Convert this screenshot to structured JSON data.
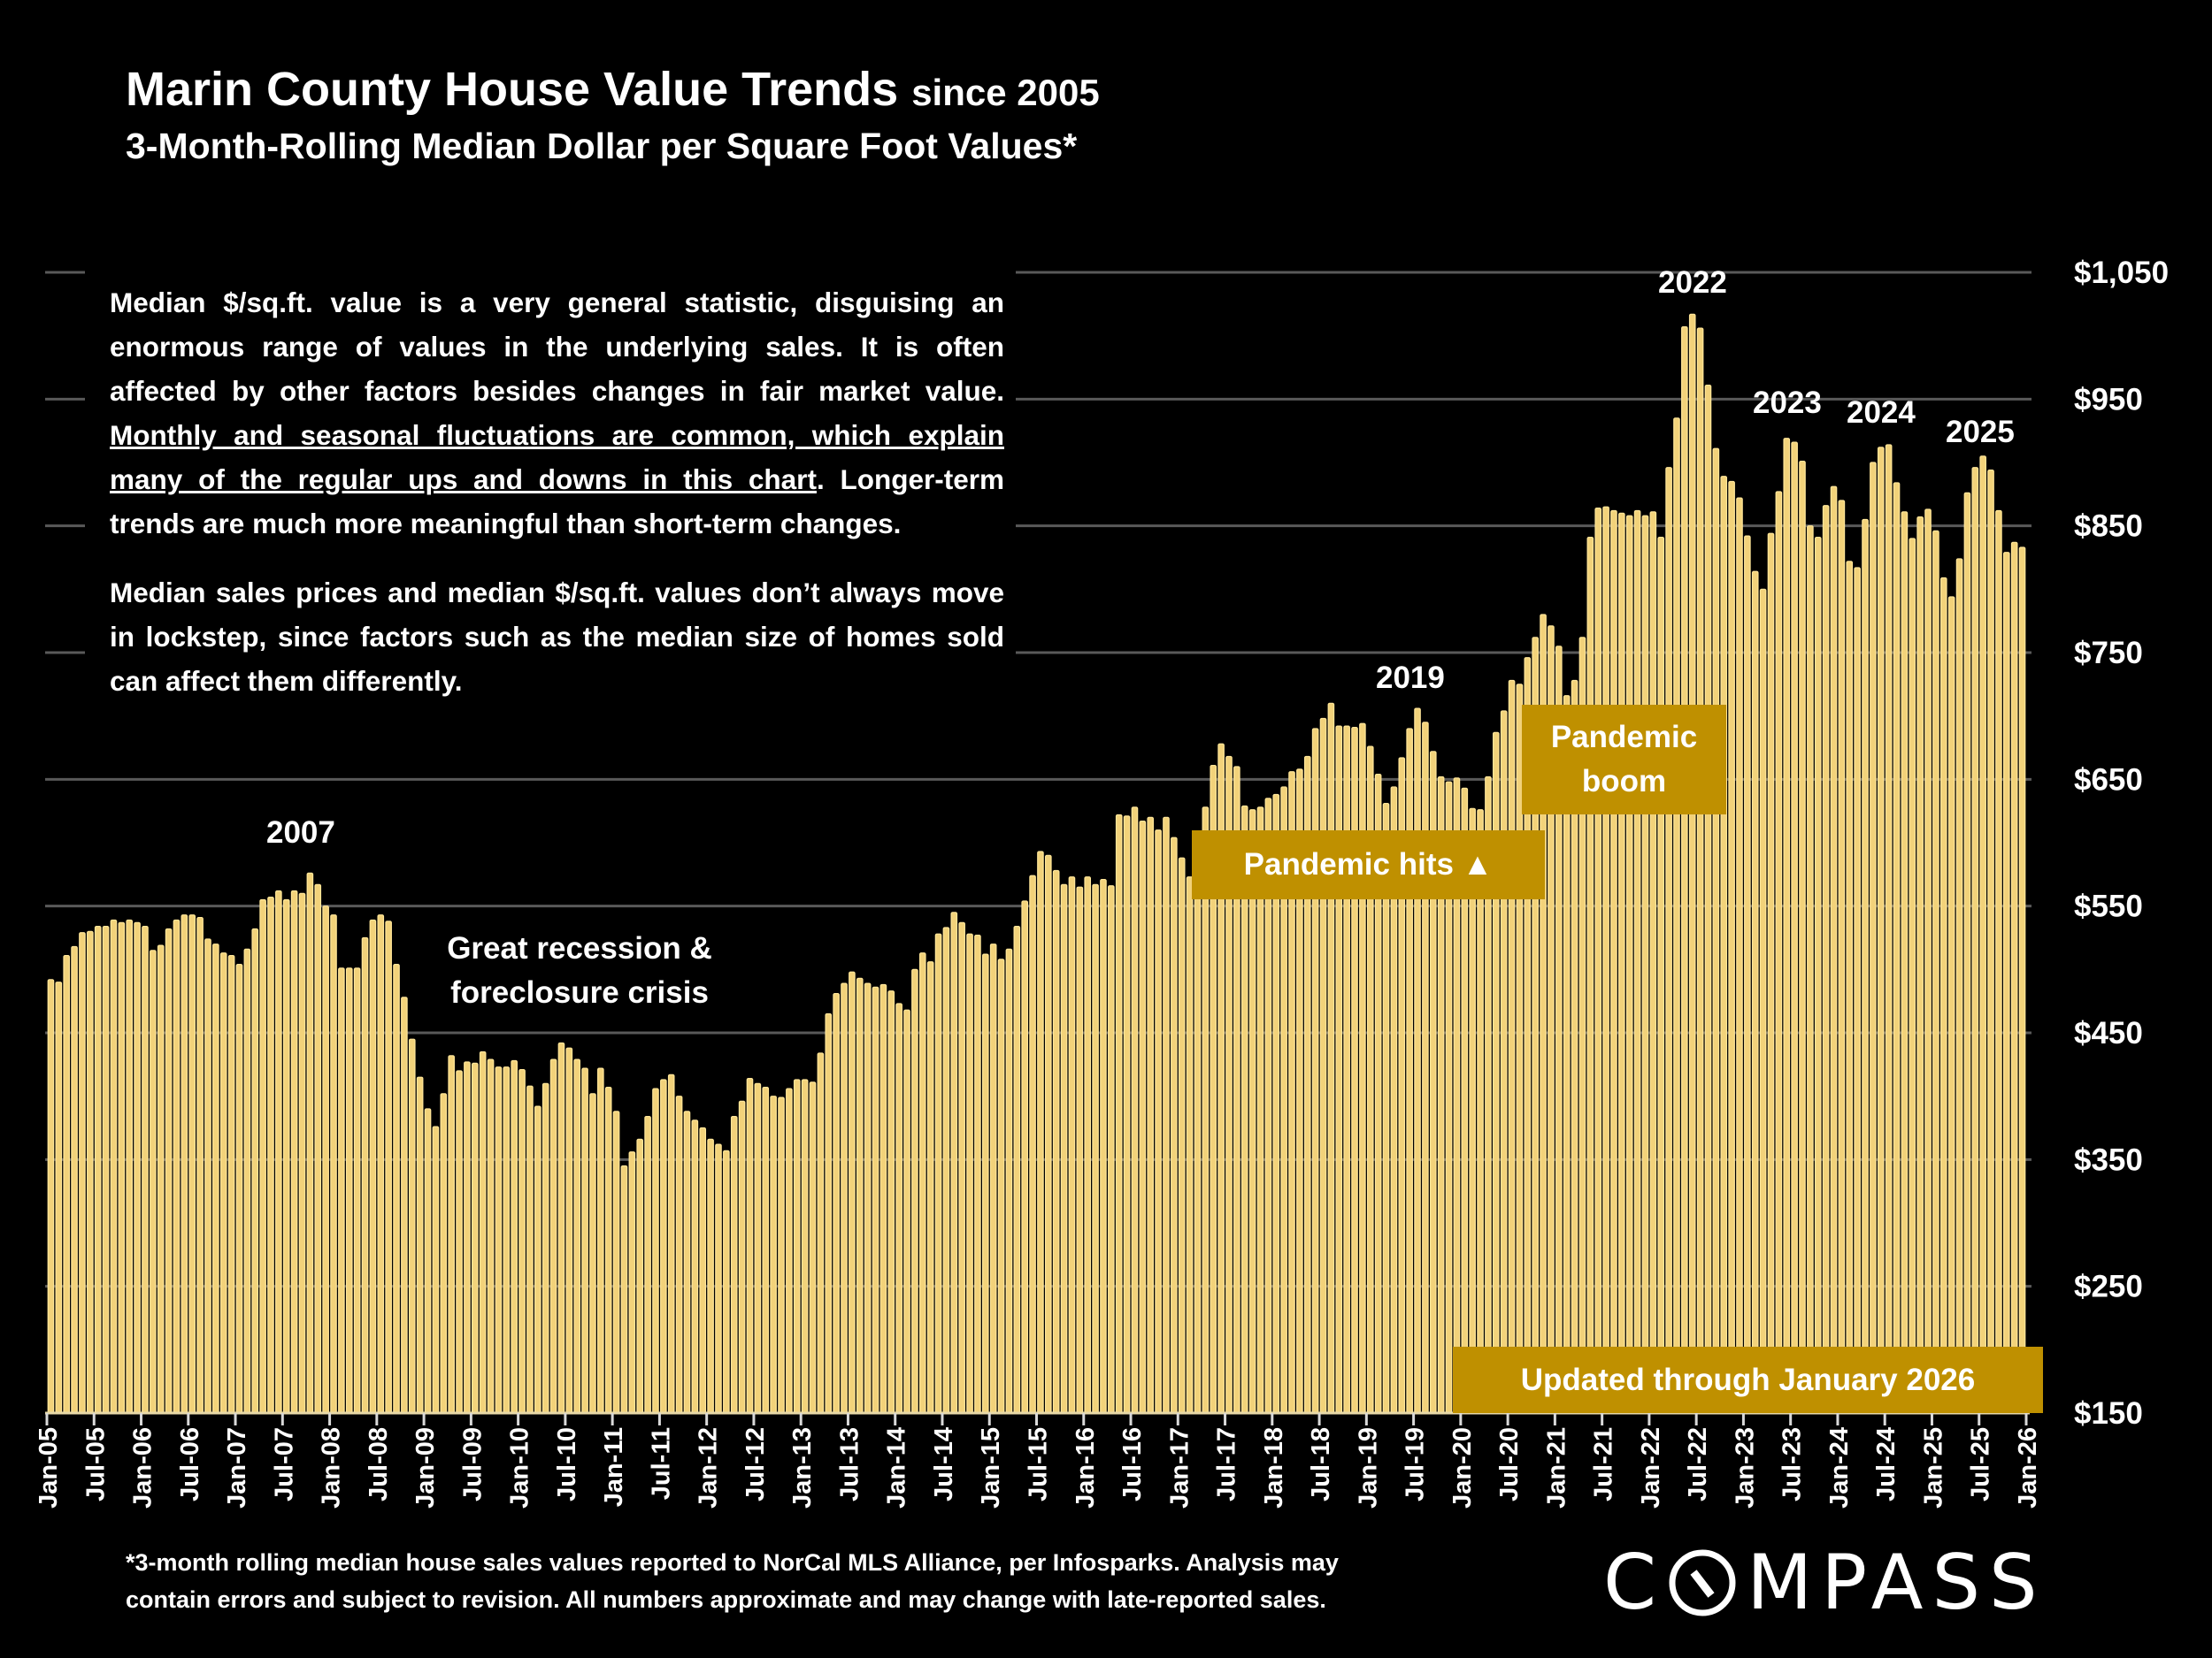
{
  "header": {
    "title": "Marin County House Value Trends",
    "title_suffix": "since 2005",
    "subtitle": "3-Month-Rolling Median Dollar per Square Foot Values*"
  },
  "textbox": {
    "p1_start": "Median $/sq.ft. value is a very general statistic, disguising an enormous range of values in the underlying sales. It is often affected by other factors besides changes in fair market value. ",
    "p1_underlined": "Monthly and seasonal fluctuations are common, which explain many of the regular ups and downs in this chart",
    "p1_end": ". Longer-term trends are much more meaningful than short-term changes.",
    "p2": "Median sales prices and median $/sq.ft. values don’t always move in lockstep, since factors such as the median size of homes sold can affect them differently."
  },
  "annotations": {
    "y2007": "2007",
    "recession_line1": "Great recession &",
    "recession_line2": "foreclosure crisis",
    "y2019": "2019",
    "y2022": "2022",
    "y2023": "2023",
    "y2024": "2024",
    "y2025": "2025",
    "pandemic_hits": "Pandemic hits ▲",
    "pandemic_boom_line1": "Pandemic",
    "pandemic_boom_line2": "boom",
    "updated": "Updated through January 2026"
  },
  "footnote": {
    "line1": "*3-month rolling median house sales values reported to NorCal MLS Alliance, per Infosparks. Analysis may",
    "line2": "contain errors and subject to revision. All numbers approximate and may change with late-reported sales."
  },
  "logo": {
    "text": "COMPASS"
  },
  "colors": {
    "bar": "#F2D27A",
    "bar_edge": "#FFE699",
    "annotation_box": "#BF9000",
    "grid": "#595959",
    "background": "#000000"
  },
  "chart_data": {
    "type": "bar",
    "frequency": "monthly",
    "title": "Marin County House Value Trends since 2005",
    "subtitle": "3-Month-Rolling Median Dollar per Square Foot Values*",
    "ylim": [
      150,
      1050
    ],
    "y_ticks": [
      "$150",
      "$250",
      "$350",
      "$450",
      "$550",
      "$650",
      "$750",
      "$850",
      "$950",
      "$1,050"
    ],
    "y_axis_side": "right",
    "grid": true,
    "x_tick_labels": [
      "Jan-05",
      "Jul-05",
      "Jan-06",
      "Jul-06",
      "Jan-07",
      "Jul-07",
      "Jan-08",
      "Jul-08",
      "Jan-09",
      "Jul-09",
      "Jan-10",
      "Jul-10",
      "Jan-11",
      "Jul-11",
      "Jan-12",
      "Jul-12",
      "Jan-13",
      "Jul-13",
      "Jan-14",
      "Jul-14",
      "Jan-15",
      "Jul-15",
      "Jan-16",
      "Jul-16",
      "Jan-17",
      "Jul-17",
      "Jan-18",
      "Jul-18",
      "Jan-19",
      "Jul-19",
      "Jan-20",
      "Jul-20",
      "Jan-21",
      "Jul-21",
      "Jan-22",
      "Jul-22",
      "Jan-23",
      "Jul-23",
      "Jan-24",
      "Jul-24",
      "Jan-25",
      "Jul-25",
      "Jan-26"
    ],
    "values": [
      492,
      490,
      511,
      518,
      529,
      530,
      534,
      534,
      539,
      537,
      539,
      537,
      534,
      515,
      519,
      532,
      539,
      543,
      543,
      541,
      524,
      520,
      513,
      511,
      504,
      516,
      532,
      555,
      557,
      562,
      555,
      562,
      560,
      576,
      567,
      550,
      543,
      501,
      501,
      501,
      525,
      539,
      543,
      538,
      504,
      478,
      445,
      415,
      390,
      376,
      402,
      432,
      420,
      427,
      426,
      435,
      429,
      423,
      423,
      428,
      421,
      408,
      392,
      410,
      429,
      442,
      438,
      429,
      422,
      402,
      422,
      407,
      388,
      345,
      356,
      366,
      384,
      406,
      413,
      417,
      400,
      388,
      381,
      375,
      366,
      362,
      357,
      384,
      396,
      414,
      410,
      407,
      400,
      399,
      406,
      413,
      413,
      411,
      434,
      465,
      481,
      489,
      498,
      493,
      489,
      486,
      488,
      483,
      473,
      468,
      500,
      513,
      506,
      528,
      533,
      545,
      537,
      528,
      527,
      512,
      520,
      508,
      516,
      534,
      554,
      574,
      593,
      590,
      578,
      567,
      573,
      565,
      573,
      567,
      571,
      566,
      622,
      621,
      628,
      617,
      620,
      610,
      620,
      604,
      588,
      573,
      586,
      628,
      661,
      678,
      668,
      660,
      629,
      626,
      628,
      635,
      638,
      644,
      656,
      658,
      668,
      690,
      698,
      710,
      692,
      692,
      691,
      694,
      676,
      654,
      631,
      644,
      667,
      690,
      706,
      695,
      672,
      652,
      648,
      651,
      643,
      627,
      626,
      652,
      687,
      704,
      728,
      725,
      746,
      762,
      780,
      771,
      755,
      716,
      728,
      762,
      841,
      864,
      865,
      862,
      860,
      858,
      862,
      858,
      861,
      841,
      896,
      935,
      1007,
      1017,
      1006,
      961,
      911,
      889,
      885,
      872,
      842,
      814,
      800,
      844,
      877,
      919,
      916,
      901,
      850,
      841,
      866,
      881,
      870,
      822,
      817,
      855,
      900,
      912,
      914,
      884,
      861,
      840,
      857,
      863,
      846,
      809,
      794,
      824,
      876,
      896,
      905,
      894,
      862,
      829,
      837,
      833
    ]
  }
}
